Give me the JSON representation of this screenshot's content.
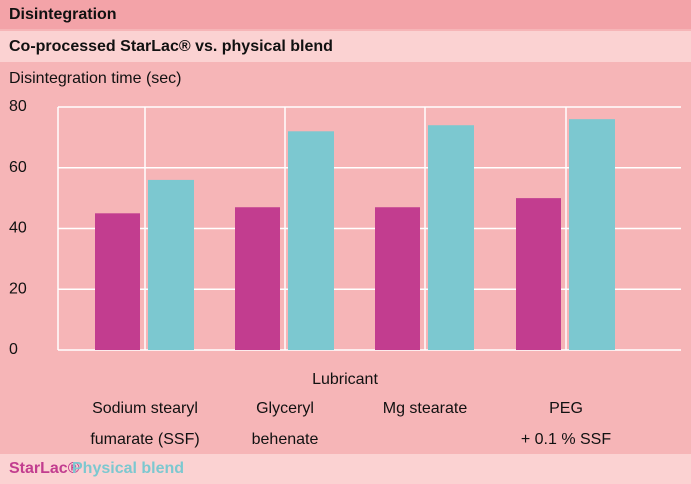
{
  "chart_data": {
    "type": "bar",
    "title": "Disintegration",
    "subtitle": "Co-processed StarLac® vs. physical blend",
    "y_label": "Disintegration time (sec)",
    "x_label": "Lubricant",
    "categories": [
      [
        "Sodium stearyl",
        "fumarate (SSF)"
      ],
      [
        "Glyceryl",
        "behenate"
      ],
      [
        "Mg stearate"
      ],
      [
        "PEG",
        "+ 0.1 % SSF"
      ]
    ],
    "series": [
      {
        "name": "StarLac®",
        "color": "#c23d8f",
        "values": [
          45,
          47,
          47,
          50
        ]
      },
      {
        "name": "Physical blend",
        "color": "#7cc8d0",
        "values": [
          56,
          72,
          74,
          76
        ]
      }
    ],
    "ylim": [
      0,
      80
    ],
    "yticks": [
      0,
      20,
      40,
      60,
      80
    ],
    "grid": true
  }
}
